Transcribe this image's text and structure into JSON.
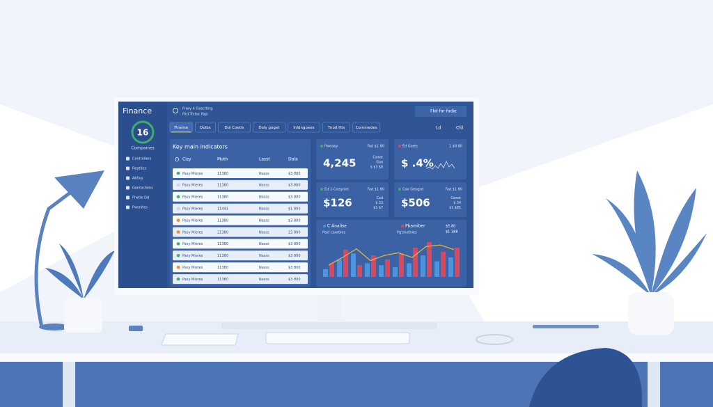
{
  "brand": "Finance",
  "badge": "16",
  "badge_label": "Companies",
  "sidebar": [
    "Controllers",
    "Reptlies",
    "Aktivy",
    "Gontachims",
    "Fhetie Dd",
    "Pwsnites"
  ],
  "header": {
    "line1": "Fnwy 4 Goscrting",
    "line2": "Fitd Trctoc Ngs",
    "user": "Fkd for fodie"
  },
  "tabs": [
    "Fineme",
    "Dolbs",
    "Dol Coetis",
    "Doly goget",
    "Inldngoees",
    "Tnod Hts",
    "Commedes"
  ],
  "toolbar": [
    "Ld",
    "Cfd"
  ],
  "table": {
    "title": "Key main indicators",
    "columns": [
      "Cizy",
      "Muth",
      "Lasst",
      "Dala"
    ],
    "rows": [
      {
        "dot": "#3fae6a",
        "cells": [
          "Pasy Mieres",
          "11380",
          "Nasss",
          "$3 800"
        ]
      },
      {
        "dot": "#c9d3e6",
        "cells": [
          "Pasy Mieres",
          "11380",
          "Nasss",
          "$3 800"
        ]
      },
      {
        "dot": "#3fae6a",
        "cells": [
          "Pasy Mieres",
          "11380",
          "Nasss",
          "$3 800"
        ]
      },
      {
        "dot": "#c9d3e6",
        "cells": [
          "Pasy Mieres",
          "11441",
          "Nasss",
          "$1 800"
        ]
      },
      {
        "dot": "#e8893a",
        "cells": [
          "Pasy Mieres",
          "11380",
          "Nasss",
          "$3 800"
        ]
      },
      {
        "dot": "#e8893a",
        "cells": [
          "Pasy Mieres",
          "21380",
          "Nasss",
          "23 800"
        ]
      },
      {
        "dot": "#3fae6a",
        "cells": [
          "Pasy Mieres",
          "11380",
          "Nasss",
          "$3 800"
        ]
      },
      {
        "dot": "#3fae6a",
        "cells": [
          "Pasy Mieres",
          "11380",
          "Nasss",
          "$3 800"
        ]
      },
      {
        "dot": "#e8893a",
        "cells": [
          "Pasy Mieres",
          "11380",
          "Nasss",
          "$3 800"
        ]
      },
      {
        "dot": "#3fae6a",
        "cells": [
          "Pasy Mieres",
          "11380",
          "Nasss",
          "$3 800"
        ]
      }
    ]
  },
  "cards": [
    {
      "title": "Pweaby",
      "meta": "Fad $1 80",
      "value": "4,245",
      "notes": [
        "Cawst",
        "Gao",
        "$ $3 $8"
      ]
    },
    {
      "title": "Ed Gaeis",
      "meta": "1 $8 80",
      "value": "$ .4%",
      "notes": []
    },
    {
      "title": "Ed 1-Coegniel",
      "meta": "Fad $1 80",
      "value": "$126",
      "notes": [
        "Cad",
        "$ 33",
        "$1 $7"
      ]
    },
    {
      "title": "Coo Geogsd",
      "meta": "Fad $1 80",
      "value": "$506",
      "notes": [
        "Cawst",
        "$ 34",
        "$1 $85"
      ]
    }
  ],
  "chart_data": {
    "type": "bar",
    "legend": [
      "C Analise",
      "Pbamiber"
    ],
    "meta": [
      "$5.80",
      "$1 388"
    ],
    "subtitle": [
      "Post caorbies",
      "Pg'shothies"
    ],
    "ylim": [
      0,
      100
    ],
    "series": [
      {
        "name": "C Analise",
        "color": "#4f93dc",
        "values": [
          20,
          45,
          60,
          35,
          30,
          25,
          35,
          55,
          40,
          50
        ]
      },
      {
        "name": "Pbamiber",
        "color": "#d9485d",
        "values": [
          35,
          70,
          30,
          55,
          45,
          60,
          75,
          90,
          65,
          75
        ]
      }
    ],
    "line": {
      "color": "#e5b33c",
      "values": [
        30,
        50,
        72,
        42,
        55,
        62,
        50,
        78,
        82,
        70
      ]
    }
  }
}
